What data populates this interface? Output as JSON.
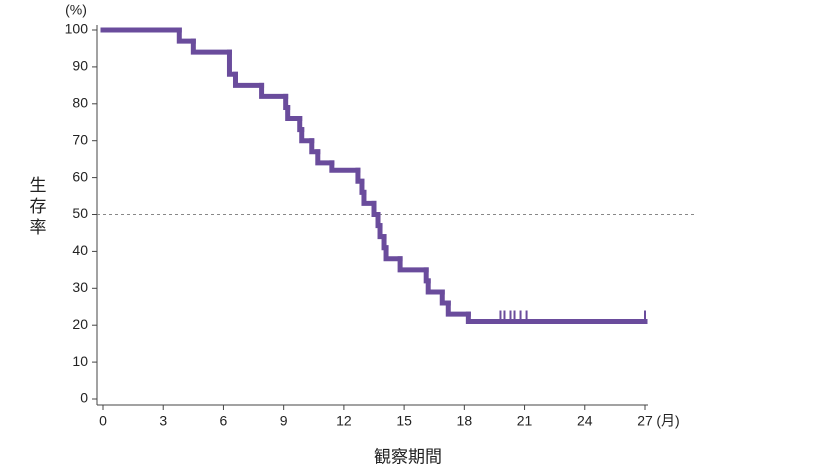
{
  "chart_data": {
    "type": "line",
    "y_unit": "(%)",
    "x_unit": "(月)",
    "ylabel": "生存率",
    "xlabel": "観察期間",
    "series": [
      {
        "color": "#6a4c9c",
        "x": [
          0,
          3.8,
          4.5,
          6.3,
          6.6,
          7.9,
          9.1,
          9.2,
          9.8,
          9.9,
          10.4,
          10.7,
          11.4,
          12.7,
          12.9,
          13.0,
          13.5,
          13.7,
          13.8,
          14.0,
          14.1,
          14.8,
          16.1,
          16.2,
          16.9,
          17.2,
          18.2,
          27
        ],
        "values": [
          100,
          97,
          94,
          88,
          85,
          82,
          79,
          76,
          73,
          70,
          67,
          64,
          62,
          59,
          56,
          53,
          50,
          47,
          44,
          41,
          38,
          35,
          32,
          29,
          26,
          23,
          21,
          21
        ]
      }
    ],
    "censored": {
      "x": [
        19.8,
        20.0,
        20.3,
        20.5,
        20.8,
        21.1,
        27
      ],
      "values": [
        21,
        21,
        21,
        21,
        21,
        21,
        21
      ]
    },
    "reference_line": 50,
    "xlim": [
      0,
      27
    ],
    "ylim": [
      0,
      100
    ],
    "xticks": [
      0,
      3,
      6,
      9,
      12,
      15,
      18,
      21,
      24,
      27
    ],
    "yticks": [
      0,
      10,
      20,
      30,
      40,
      50,
      60,
      70,
      80,
      90,
      100
    ]
  }
}
